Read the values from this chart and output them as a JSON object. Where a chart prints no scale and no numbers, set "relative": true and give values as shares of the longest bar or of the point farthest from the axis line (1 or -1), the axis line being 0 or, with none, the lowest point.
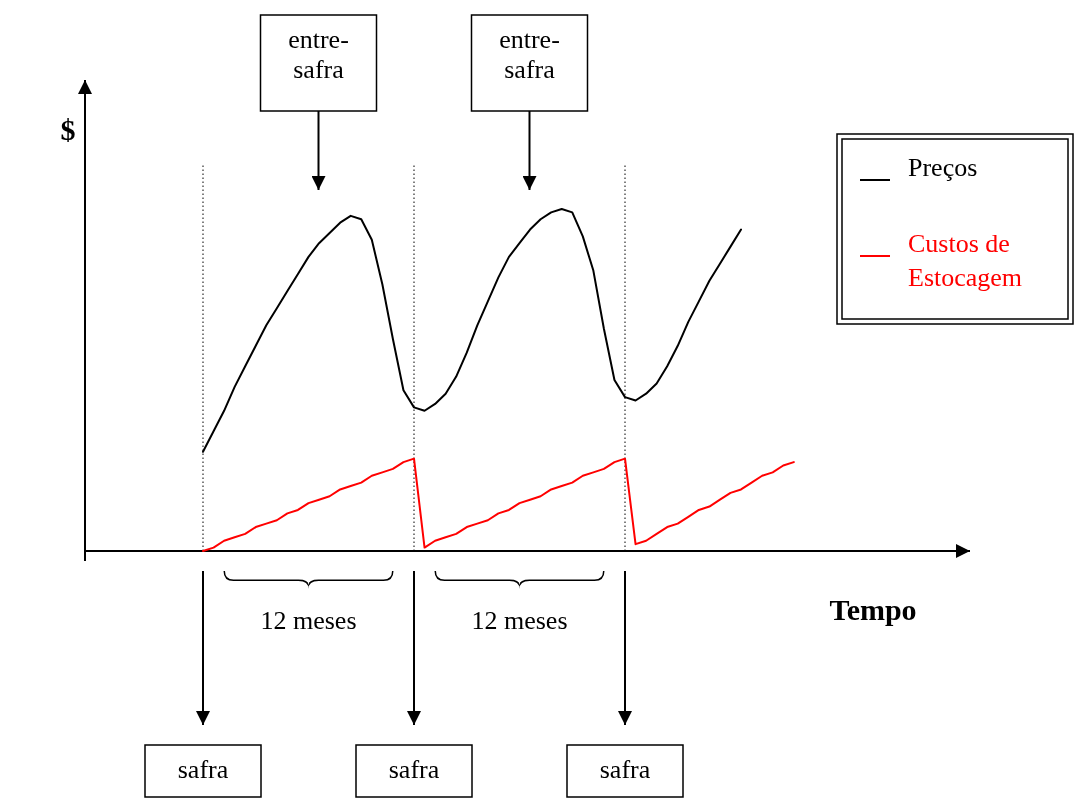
{
  "chart_data": {
    "type": "line",
    "relative": true,
    "ylabel": "$",
    "xlabel": "Tempo",
    "legend": "top right",
    "grid": "x",
    "categories": [
      null,
      null,
      null,
      null,
      null,
      null,
      null,
      null,
      null,
      null,
      null,
      null,
      null,
      null,
      null,
      null,
      null,
      null,
      null,
      null,
      null,
      null,
      null,
      null,
      null,
      null,
      null,
      null,
      null,
      null,
      null,
      null,
      null,
      null,
      null,
      null,
      null,
      null,
      null,
      null,
      null,
      null,
      null,
      null,
      null,
      null,
      null,
      null,
      null,
      null,
      null,
      null,
      null,
      null,
      null,
      null,
      null
    ],
    "series": [
      {
        "name": "Preços",
        "color": "#000000",
        "values": [
          0.29,
          0.35,
          0.41,
          0.48,
          0.54,
          0.6,
          0.66,
          0.71,
          0.76,
          0.81,
          0.86,
          0.9,
          0.93,
          0.96,
          0.98,
          0.97,
          0.91,
          0.78,
          0.62,
          0.47,
          0.42,
          0.41,
          0.43,
          0.46,
          0.51,
          0.58,
          0.66,
          0.73,
          0.8,
          0.86,
          0.9,
          0.94,
          0.97,
          0.99,
          1.0,
          0.99,
          0.92,
          0.82,
          0.65,
          0.5,
          0.45,
          0.44,
          0.46,
          0.49,
          0.54,
          0.6,
          0.67,
          0.73,
          0.79,
          0.84,
          0.89,
          0.94,
          null,
          null,
          null,
          null,
          null
        ]
      },
      {
        "name": "Custos de Estocagem",
        "color": "#ff0000",
        "values": [
          0,
          0.01,
          0.03,
          0.04,
          0.05,
          0.07,
          0.08,
          0.09,
          0.11,
          0.12,
          0.14,
          0.15,
          0.16,
          0.18,
          0.19,
          0.2,
          0.22,
          0.23,
          0.24,
          0.26,
          0.27,
          0.01,
          0.03,
          0.04,
          0.05,
          0.07,
          0.08,
          0.09,
          0.11,
          0.12,
          0.14,
          0.15,
          0.16,
          0.18,
          0.19,
          0.2,
          0.22,
          0.23,
          0.24,
          0.26,
          0.27,
          0.02,
          0.03,
          0.05,
          0.07,
          0.08,
          0.1,
          0.12,
          0.13,
          0.15,
          0.17,
          0.18,
          0.2,
          0.22,
          0.23,
          0.25,
          0.26
        ]
      }
    ],
    "annotations": [
      "entre-safra",
      "entre-safra",
      "12 meses",
      "12 meses",
      "safra",
      "safra",
      "safra"
    ]
  }
}
